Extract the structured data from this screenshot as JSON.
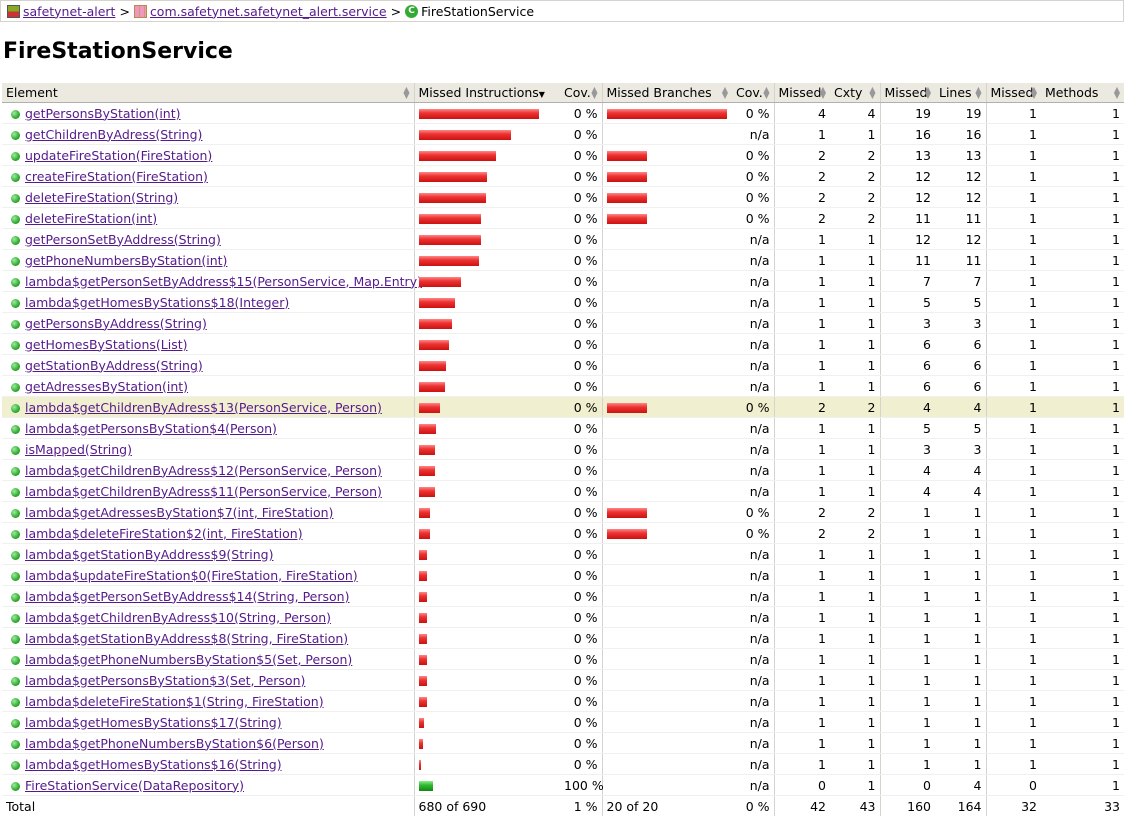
{
  "breadcrumb": {
    "session": "safetynet-alert",
    "package": "com.safetynet.safetynet_alert.service",
    "current": "FireStationService",
    "sep": ">"
  },
  "title": "FireStationService",
  "headers": {
    "element": "Element",
    "missed_instructions": "Missed Instructions",
    "cov1": "Cov.",
    "missed_branches": "Missed Branches",
    "cov2": "Cov.",
    "missed_cxty": "Missed",
    "cxty": "Cxty",
    "missed_lines": "Missed",
    "lines": "Lines",
    "missed_methods": "Missed",
    "methods": "Methods"
  },
  "rows": [
    {
      "name": "getPersonsByStation(int)",
      "ibar": 120,
      "icov": "0 %",
      "bbar": 120,
      "bcov": "0 %",
      "mc": "4",
      "c": "4",
      "ml": "19",
      "l": "19",
      "mm": "1",
      "m": "1"
    },
    {
      "name": "getChildrenByAdress(String)",
      "ibar": 92,
      "icov": "0 %",
      "bbar": 0,
      "bcov": "n/a",
      "mc": "1",
      "c": "1",
      "ml": "16",
      "l": "16",
      "mm": "1",
      "m": "1"
    },
    {
      "name": "updateFireStation(FireStation)",
      "ibar": 77,
      "icov": "0 %",
      "bbar": 40,
      "bcov": "0 %",
      "mc": "2",
      "c": "2",
      "ml": "13",
      "l": "13",
      "mm": "1",
      "m": "1"
    },
    {
      "name": "createFireStation(FireStation)",
      "ibar": 68,
      "icov": "0 %",
      "bbar": 40,
      "bcov": "0 %",
      "mc": "2",
      "c": "2",
      "ml": "12",
      "l": "12",
      "mm": "1",
      "m": "1"
    },
    {
      "name": "deleteFireStation(String)",
      "ibar": 67,
      "icov": "0 %",
      "bbar": 40,
      "bcov": "0 %",
      "mc": "2",
      "c": "2",
      "ml": "12",
      "l": "12",
      "mm": "1",
      "m": "1"
    },
    {
      "name": "deleteFireStation(int)",
      "ibar": 62,
      "icov": "0 %",
      "bbar": 40,
      "bcov": "0 %",
      "mc": "2",
      "c": "2",
      "ml": "11",
      "l": "11",
      "mm": "1",
      "m": "1"
    },
    {
      "name": "getPersonSetByAddress(String)",
      "ibar": 62,
      "icov": "0 %",
      "bbar": 0,
      "bcov": "n/a",
      "mc": "1",
      "c": "1",
      "ml": "12",
      "l": "12",
      "mm": "1",
      "m": "1"
    },
    {
      "name": "getPhoneNumbersByStation(int)",
      "ibar": 60,
      "icov": "0 %",
      "bbar": 0,
      "bcov": "n/a",
      "mc": "1",
      "c": "1",
      "ml": "11",
      "l": "11",
      "mm": "1",
      "m": "1"
    },
    {
      "name": "lambda$getPersonSetByAddress$15(PersonService, Map.Entry)",
      "ibar": 42,
      "icov": "0 %",
      "bbar": 0,
      "bcov": "n/a",
      "mc": "1",
      "c": "1",
      "ml": "7",
      "l": "7",
      "mm": "1",
      "m": "1"
    },
    {
      "name": "lambda$getHomesByStations$18(Integer)",
      "ibar": 36,
      "icov": "0 %",
      "bbar": 0,
      "bcov": "n/a",
      "mc": "1",
      "c": "1",
      "ml": "5",
      "l": "5",
      "mm": "1",
      "m": "1"
    },
    {
      "name": "getPersonsByAddress(String)",
      "ibar": 33,
      "icov": "0 %",
      "bbar": 0,
      "bcov": "n/a",
      "mc": "1",
      "c": "1",
      "ml": "3",
      "l": "3",
      "mm": "1",
      "m": "1"
    },
    {
      "name": "getHomesByStations(List)",
      "ibar": 30,
      "icov": "0 %",
      "bbar": 0,
      "bcov": "n/a",
      "mc": "1",
      "c": "1",
      "ml": "6",
      "l": "6",
      "mm": "1",
      "m": "1"
    },
    {
      "name": "getStationByAddress(String)",
      "ibar": 27,
      "icov": "0 %",
      "bbar": 0,
      "bcov": "n/a",
      "mc": "1",
      "c": "1",
      "ml": "6",
      "l": "6",
      "mm": "1",
      "m": "1"
    },
    {
      "name": "getAdressesByStation(int)",
      "ibar": 26,
      "icov": "0 %",
      "bbar": 0,
      "bcov": "n/a",
      "mc": "1",
      "c": "1",
      "ml": "6",
      "l": "6",
      "mm": "1",
      "m": "1"
    },
    {
      "name": "lambda$getChildrenByAdress$13(PersonService, Person)",
      "ibar": 21,
      "icov": "0 %",
      "bbar": 40,
      "bcov": "0 %",
      "mc": "2",
      "c": "2",
      "ml": "4",
      "l": "4",
      "mm": "1",
      "m": "1",
      "hl": true
    },
    {
      "name": "lambda$getPersonsByStation$4(Person)",
      "ibar": 17,
      "icov": "0 %",
      "bbar": 0,
      "bcov": "n/a",
      "mc": "1",
      "c": "1",
      "ml": "5",
      "l": "5",
      "mm": "1",
      "m": "1"
    },
    {
      "name": "isMapped(String)",
      "ibar": 16,
      "icov": "0 %",
      "bbar": 0,
      "bcov": "n/a",
      "mc": "1",
      "c": "1",
      "ml": "3",
      "l": "3",
      "mm": "1",
      "m": "1"
    },
    {
      "name": "lambda$getChildrenByAdress$12(PersonService, Person)",
      "ibar": 16,
      "icov": "0 %",
      "bbar": 0,
      "bcov": "n/a",
      "mc": "1",
      "c": "1",
      "ml": "4",
      "l": "4",
      "mm": "1",
      "m": "1"
    },
    {
      "name": "lambda$getChildrenByAdress$11(PersonService, Person)",
      "ibar": 16,
      "icov": "0 %",
      "bbar": 0,
      "bcov": "n/a",
      "mc": "1",
      "c": "1",
      "ml": "4",
      "l": "4",
      "mm": "1",
      "m": "1"
    },
    {
      "name": "lambda$getAdressesByStation$7(int, FireStation)",
      "ibar": 11,
      "icov": "0 %",
      "bbar": 40,
      "bcov": "0 %",
      "mc": "2",
      "c": "2",
      "ml": "1",
      "l": "1",
      "mm": "1",
      "m": "1"
    },
    {
      "name": "lambda$deleteFireStation$2(int, FireStation)",
      "ibar": 11,
      "icov": "0 %",
      "bbar": 40,
      "bcov": "0 %",
      "mc": "2",
      "c": "2",
      "ml": "1",
      "l": "1",
      "mm": "1",
      "m": "1"
    },
    {
      "name": "lambda$getStationByAddress$9(String)",
      "ibar": 8,
      "icov": "0 %",
      "bbar": 0,
      "bcov": "n/a",
      "mc": "1",
      "c": "1",
      "ml": "1",
      "l": "1",
      "mm": "1",
      "m": "1"
    },
    {
      "name": "lambda$updateFireStation$0(FireStation, FireStation)",
      "ibar": 8,
      "icov": "0 %",
      "bbar": 0,
      "bcov": "n/a",
      "mc": "1",
      "c": "1",
      "ml": "1",
      "l": "1",
      "mm": "1",
      "m": "1"
    },
    {
      "name": "lambda$getPersonSetByAddress$14(String, Person)",
      "ibar": 8,
      "icov": "0 %",
      "bbar": 0,
      "bcov": "n/a",
      "mc": "1",
      "c": "1",
      "ml": "1",
      "l": "1",
      "mm": "1",
      "m": "1"
    },
    {
      "name": "lambda$getChildrenByAdress$10(String, Person)",
      "ibar": 8,
      "icov": "0 %",
      "bbar": 0,
      "bcov": "n/a",
      "mc": "1",
      "c": "1",
      "ml": "1",
      "l": "1",
      "mm": "1",
      "m": "1"
    },
    {
      "name": "lambda$getStationByAddress$8(String, FireStation)",
      "ibar": 8,
      "icov": "0 %",
      "bbar": 0,
      "bcov": "n/a",
      "mc": "1",
      "c": "1",
      "ml": "1",
      "l": "1",
      "mm": "1",
      "m": "1"
    },
    {
      "name": "lambda$getPhoneNumbersByStation$5(Set, Person)",
      "ibar": 8,
      "icov": "0 %",
      "bbar": 0,
      "bcov": "n/a",
      "mc": "1",
      "c": "1",
      "ml": "1",
      "l": "1",
      "mm": "1",
      "m": "1"
    },
    {
      "name": "lambda$getPersonsByStation$3(Set, Person)",
      "ibar": 8,
      "icov": "0 %",
      "bbar": 0,
      "bcov": "n/a",
      "mc": "1",
      "c": "1",
      "ml": "1",
      "l": "1",
      "mm": "1",
      "m": "1"
    },
    {
      "name": "lambda$deleteFireStation$1(String, FireStation)",
      "ibar": 8,
      "icov": "0 %",
      "bbar": 0,
      "bcov": "n/a",
      "mc": "1",
      "c": "1",
      "ml": "1",
      "l": "1",
      "mm": "1",
      "m": "1"
    },
    {
      "name": "lambda$getHomesByStations$17(String)",
      "ibar": 5,
      "icov": "0 %",
      "bbar": 0,
      "bcov": "n/a",
      "mc": "1",
      "c": "1",
      "ml": "1",
      "l": "1",
      "mm": "1",
      "m": "1"
    },
    {
      "name": "lambda$getPhoneNumbersByStation$6(Person)",
      "ibar": 4,
      "icov": "0 %",
      "bbar": 0,
      "bcov": "n/a",
      "mc": "1",
      "c": "1",
      "ml": "1",
      "l": "1",
      "mm": "1",
      "m": "1"
    },
    {
      "name": "lambda$getHomesByStations$16(String)",
      "ibar": 2,
      "icov": "0 %",
      "bbar": 0,
      "bcov": "n/a",
      "mc": "1",
      "c": "1",
      "ml": "1",
      "l": "1",
      "mm": "1",
      "m": "1"
    },
    {
      "name": "FireStationService(DataRepository)",
      "ibar": 14,
      "green": true,
      "icov": "100 %",
      "bbar": 0,
      "bcov": "n/a",
      "mc": "0",
      "c": "1",
      "ml": "0",
      "l": "4",
      "mm": "0",
      "m": "1"
    }
  ],
  "total": {
    "label": "Total",
    "instructions": "680 of 690",
    "icov": "1 %",
    "branches": "20 of 20",
    "bcov": "0 %",
    "mc": "42",
    "c": "43",
    "ml": "160",
    "l": "164",
    "mm": "32",
    "m": "33"
  },
  "colors": {
    "bar_missed": "#e33333",
    "bar_covered": "#33bb33",
    "link": "#551a8b",
    "header_bg": "#ece9e1",
    "highlight_row": "#f0f0d0"
  }
}
